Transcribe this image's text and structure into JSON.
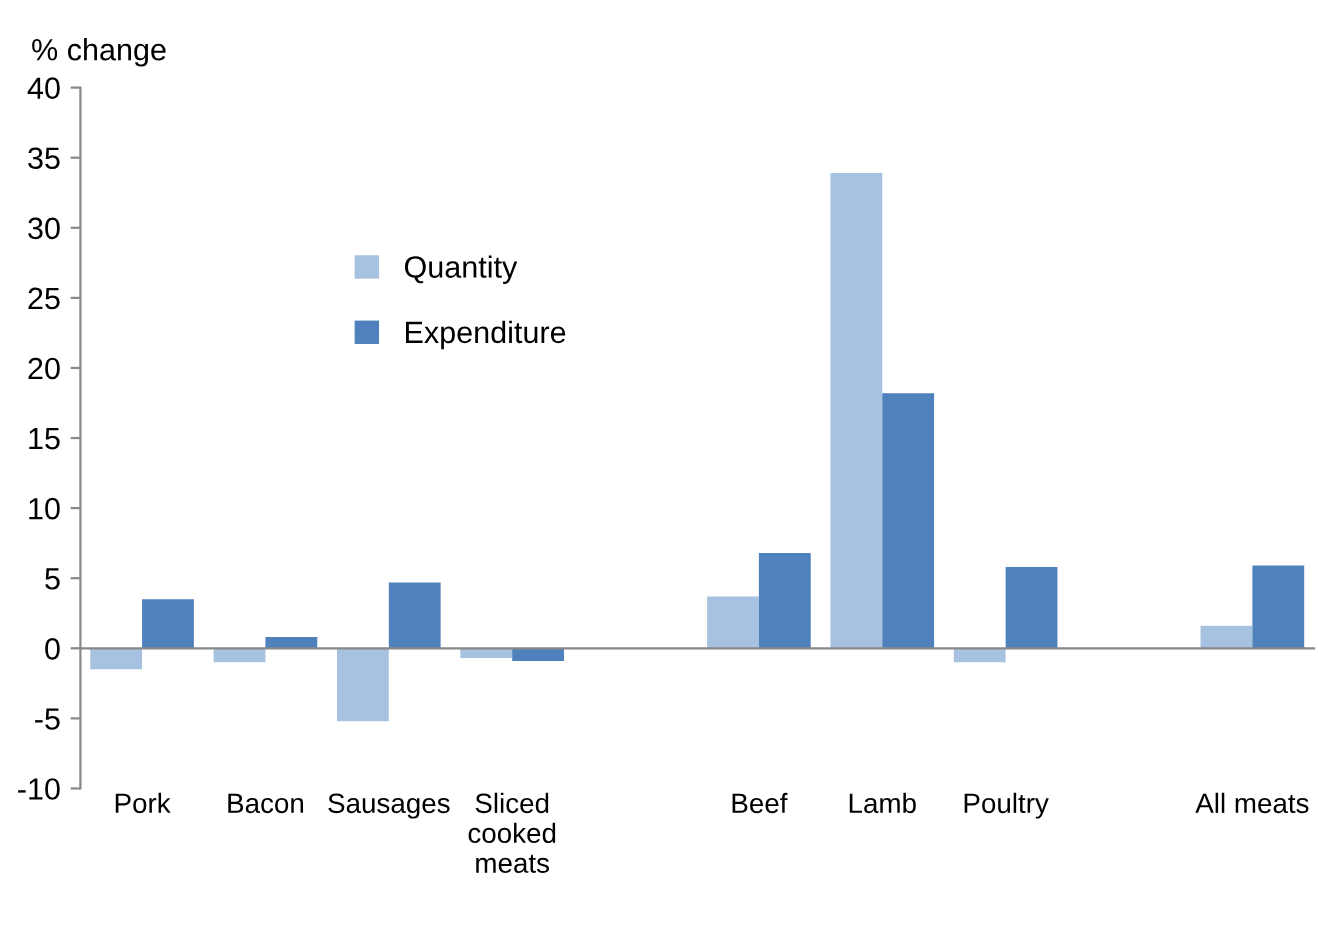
{
  "chart_data": {
    "type": "bar",
    "ylabel": "% change",
    "categories": [
      "Pork",
      "Bacon",
      "Sausages",
      "Sliced cooked meats",
      null,
      "Beef",
      "Lamb",
      "Poultry",
      null,
      "All meats"
    ],
    "series": [
      {
        "name": "Quantity",
        "color": "#a7c2e0",
        "values": [
          -1.5,
          -1.0,
          -5.2,
          -0.7,
          null,
          3.7,
          33.9,
          -1.0,
          null,
          1.6
        ]
      },
      {
        "name": "Expenditure",
        "color": "#4f81bd",
        "values": [
          3.5,
          0.8,
          4.7,
          -0.9,
          null,
          6.8,
          18.2,
          5.8,
          null,
          5.9
        ]
      }
    ],
    "ylim": [
      -10,
      40
    ],
    "yticks": [
      -10,
      -5,
      0,
      5,
      10,
      15,
      20,
      25,
      30,
      35,
      40
    ],
    "legend": "top left"
  }
}
